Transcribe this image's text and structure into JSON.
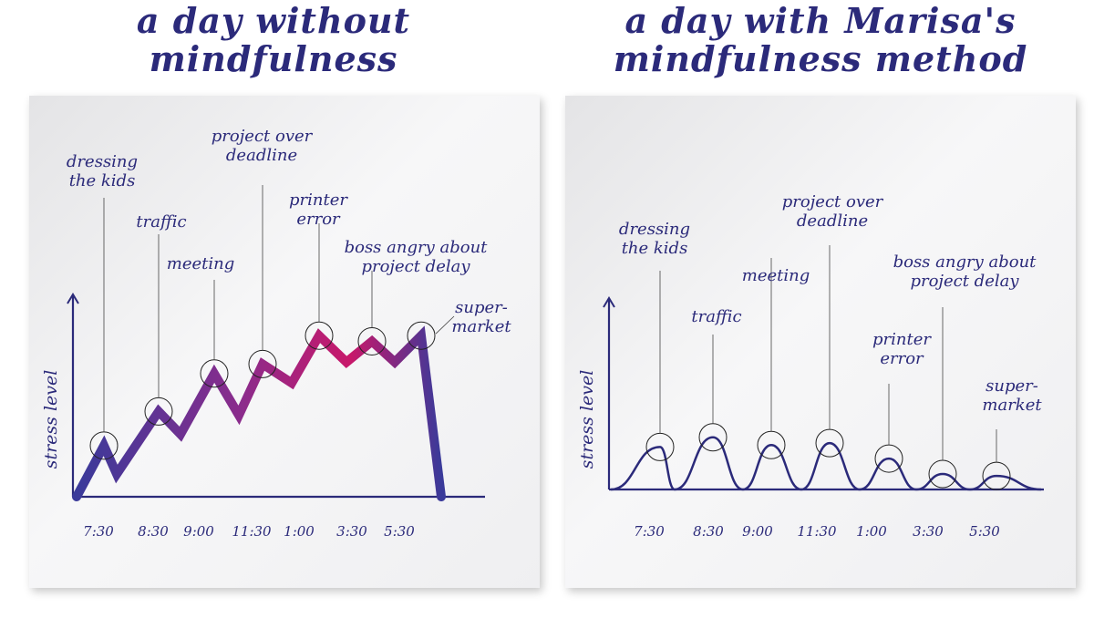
{
  "left": {
    "title_line1": "a day without",
    "title_line2": "mindfulness",
    "ylabel": "stress level"
  },
  "right": {
    "title_line1": "a day with Marisa's",
    "title_line2": "mindfulness method",
    "ylabel": "stress level"
  },
  "colors": {
    "ink": "#2b2a7a",
    "stress_start": "#3a3a9a",
    "stress_mid": "#8b2c8c",
    "stress_high": "#c8186a"
  },
  "chart_data": [
    {
      "type": "line",
      "title": "a day without mindfulness",
      "ylabel": "stress level",
      "x_ticks": [
        "7:30",
        "8:30",
        "9:00",
        "11:30",
        "1:00",
        "3:30",
        "5:30"
      ],
      "series": [
        {
          "values": [
            0,
            27,
            12,
            45,
            33,
            65,
            43,
            70,
            60,
            85,
            71,
            82,
            71,
            85,
            0
          ]
        }
      ],
      "events": [
        {
          "label_lines": [
            "dressing",
            "the kids"
          ],
          "time": "7:30",
          "stress": 27
        },
        {
          "label_lines": [
            "traffic"
          ],
          "time": "8:30",
          "stress": 45
        },
        {
          "label_lines": [
            "meeting"
          ],
          "time": "9:00",
          "stress": 65
        },
        {
          "label_lines": [
            "project over",
            "deadline"
          ],
          "time": "11:30",
          "stress": 70
        },
        {
          "label_lines": [
            "printer",
            "error"
          ],
          "time": "1:00",
          "stress": 85
        },
        {
          "label_lines": [
            "boss angry about",
            "project delay"
          ],
          "time": "3:30",
          "stress": 82
        },
        {
          "label_lines": [
            "super-",
            "market"
          ],
          "time": "5:30",
          "stress": 85
        }
      ]
    },
    {
      "type": "line",
      "title": "a day with Marisa's mindfulness method",
      "ylabel": "stress level",
      "x_ticks": [
        "7:30",
        "8:30",
        "9:00",
        "11:30",
        "1:00",
        "3:30",
        "5:30"
      ],
      "series": [
        {
          "values": [
            0,
            22,
            0,
            27,
            0,
            23,
            0,
            24,
            0,
            16,
            0,
            8,
            0,
            7,
            0
          ]
        }
      ],
      "events": [
        {
          "label_lines": [
            "dressing",
            "the kids"
          ],
          "time": "7:30",
          "stress": 22
        },
        {
          "label_lines": [
            "traffic"
          ],
          "time": "8:30",
          "stress": 27
        },
        {
          "label_lines": [
            "meeting"
          ],
          "time": "9:00",
          "stress": 23
        },
        {
          "label_lines": [
            "project over",
            "deadline"
          ],
          "time": "11:30",
          "stress": 24
        },
        {
          "label_lines": [
            "printer",
            "error"
          ],
          "time": "1:00",
          "stress": 16
        },
        {
          "label_lines": [
            "boss angry about",
            "project delay"
          ],
          "time": "3:30",
          "stress": 8
        },
        {
          "label_lines": [
            "super-",
            "market"
          ],
          "time": "5:30",
          "stress": 7
        }
      ]
    }
  ]
}
